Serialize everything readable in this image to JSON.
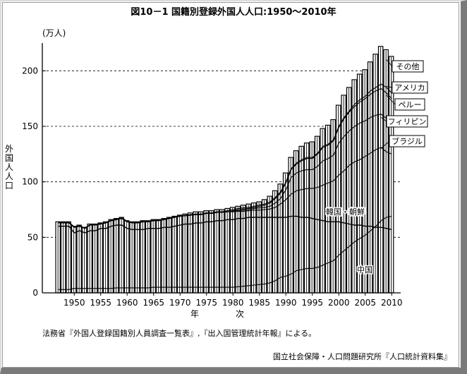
{
  "title": "図10－1 国籍別登録外国人人口:1950～2010年",
  "chart_data": {
    "type": "bar",
    "y_unit": "(万人)",
    "ylabel": "外国人人口",
    "xlabel": "年　次",
    "ylim": [
      0,
      225
    ],
    "yticks": [
      0,
      50,
      100,
      150,
      200
    ],
    "xticks": [
      1950,
      1955,
      1960,
      1965,
      1970,
      1975,
      1980,
      1985,
      1990,
      1995,
      2000,
      2005,
      2010
    ],
    "x_range": [
      1947,
      2010
    ],
    "grid": "dashed horizontal at 50, 100, 150, 200",
    "x": [
      1947,
      1948,
      1949,
      1950,
      1951,
      1952,
      1953,
      1954,
      1955,
      1956,
      1957,
      1958,
      1959,
      1960,
      1961,
      1962,
      1963,
      1964,
      1965,
      1966,
      1967,
      1968,
      1969,
      1970,
      1971,
      1972,
      1973,
      1974,
      1975,
      1976,
      1977,
      1978,
      1979,
      1980,
      1981,
      1982,
      1983,
      1984,
      1985,
      1986,
      1987,
      1988,
      1989,
      1990,
      1991,
      1992,
      1993,
      1994,
      1995,
      1996,
      1997,
      1998,
      1999,
      2000,
      2001,
      2002,
      2003,
      2004,
      2005,
      2006,
      2007,
      2008,
      2009,
      2010
    ],
    "series": [
      {
        "name": "その他",
        "values": [
          64,
          64,
          64,
          60,
          61,
          59,
          62,
          62,
          63,
          64,
          66,
          67,
          68,
          65,
          64,
          64,
          65,
          65,
          66,
          66,
          67,
          68,
          69,
          70,
          71,
          72,
          73,
          73,
          74,
          74,
          75,
          75,
          76,
          77,
          78,
          79,
          80,
          81,
          82,
          84,
          87,
          92,
          98,
          108,
          122,
          128,
          132,
          135,
          136,
          141,
          148,
          151,
          156,
          169,
          178,
          185,
          192,
          197,
          201,
          208,
          215,
          222,
          219,
          213
        ]
      },
      {
        "name": "アメリカ",
        "values": [
          63.5,
          63.5,
          63.5,
          59.5,
          60.5,
          58.5,
          61.5,
          61.5,
          62.5,
          63.5,
          65.5,
          66.5,
          67.5,
          64.5,
          63.5,
          63.5,
          64.5,
          64.5,
          65.5,
          65.5,
          66.5,
          67.5,
          68.5,
          69.5,
          70,
          70.5,
          71,
          71,
          72,
          72,
          73,
          73,
          74,
          75,
          76,
          76.5,
          77,
          78,
          79,
          80,
          82,
          86,
          91,
          100,
          112,
          117,
          120,
          122,
          122,
          126,
          132,
          134,
          138,
          150,
          158,
          164,
          170,
          174,
          177,
          182,
          185,
          188,
          185,
          180
        ]
      },
      {
        "name": "ペルー",
        "values": [
          63,
          63,
          63,
          59,
          60,
          58,
          61,
          61,
          62,
          63,
          65,
          66,
          67,
          64,
          63,
          63,
          64,
          64,
          65,
          65,
          66,
          67,
          68,
          69,
          69.5,
          70,
          70.5,
          70.5,
          71.5,
          71.5,
          72.5,
          72.5,
          73,
          74,
          75,
          75.5,
          76,
          77,
          78,
          79,
          81,
          85,
          90,
          99,
          111,
          116,
          119,
          121,
          121,
          125,
          131,
          133,
          137,
          149,
          157,
          163,
          168,
          172,
          175,
          179,
          182,
          184,
          180,
          175
        ]
      },
      {
        "name": "フィリピン",
        "values": [
          63,
          63,
          63,
          59,
          60,
          58,
          61,
          61,
          62,
          63,
          65,
          66,
          67,
          64,
          63,
          63,
          64,
          64,
          65,
          65,
          66,
          67,
          68,
          69,
          69.5,
          70,
          70.5,
          70.5,
          71.5,
          71.5,
          72.5,
          72.5,
          73,
          73.5,
          74,
          74.5,
          75,
          76,
          76.5,
          77,
          78,
          81,
          85,
          93,
          104,
          108,
          110,
          111,
          111,
          114,
          119,
          121,
          124,
          135,
          141,
          146,
          150,
          153,
          155,
          158,
          160,
          161,
          157,
          152
        ]
      },
      {
        "name": "ブラジル",
        "values": [
          63,
          63,
          63,
          59,
          60,
          58,
          61,
          61,
          62,
          63,
          65,
          66,
          67,
          64,
          63,
          63,
          64,
          64,
          65,
          65,
          66,
          67,
          68,
          69,
          69.5,
          70,
          70.5,
          70.5,
          71.5,
          71.5,
          72.5,
          72.5,
          73,
          73,
          73.5,
          73.5,
          74,
          74.5,
          74.5,
          75,
          75.5,
          77,
          80,
          84,
          89,
          92,
          93,
          94,
          94,
          95,
          97,
          99,
          101,
          106,
          110,
          115,
          118,
          120,
          123,
          126,
          129,
          131,
          127,
          125
        ]
      },
      {
        "name": "韓国・朝鮮",
        "values": [
          60,
          60,
          60,
          54,
          56,
          54,
          56,
          56,
          58,
          58,
          60,
          61,
          61,
          58,
          57,
          57,
          57,
          58,
          58,
          58,
          59,
          59,
          60,
          61,
          62,
          62,
          63,
          63,
          64,
          64,
          65,
          65,
          66,
          66,
          67,
          67,
          68,
          68,
          68,
          68,
          68,
          68,
          68,
          68,
          69,
          69,
          68,
          68,
          67,
          66,
          65,
          64,
          64,
          64,
          63,
          62,
          61,
          61,
          60,
          60,
          59,
          59,
          58,
          57
        ]
      },
      {
        "name": "中国",
        "values": [
          3,
          3,
          3,
          4,
          4,
          4,
          4,
          4,
          4,
          4,
          4,
          4.5,
          4.5,
          4.5,
          4.5,
          4.5,
          4.5,
          4.5,
          5,
          5,
          5,
          5,
          5,
          5,
          5,
          5,
          5,
          5,
          5,
          5,
          5,
          5,
          5,
          5,
          5.5,
          6,
          6.5,
          7,
          7.5,
          8,
          9,
          11,
          14,
          15,
          17,
          20,
          21,
          22,
          22,
          23,
          25,
          27,
          29,
          34,
          38,
          42,
          46,
          49,
          52,
          56,
          60,
          65,
          68,
          69
        ]
      }
    ]
  },
  "series_labels": [
    "その他",
    "アメリカ",
    "ペルー",
    "フィリピン",
    "ブラジル",
    "韓国・朝鮮",
    "中国"
  ],
  "note": "法務省『外国人登録国籍別人員調査一覧表』,『出入国管理統計年報』による。",
  "credit": "国立社会保障・人口問題研究所『人口統計資料集』"
}
